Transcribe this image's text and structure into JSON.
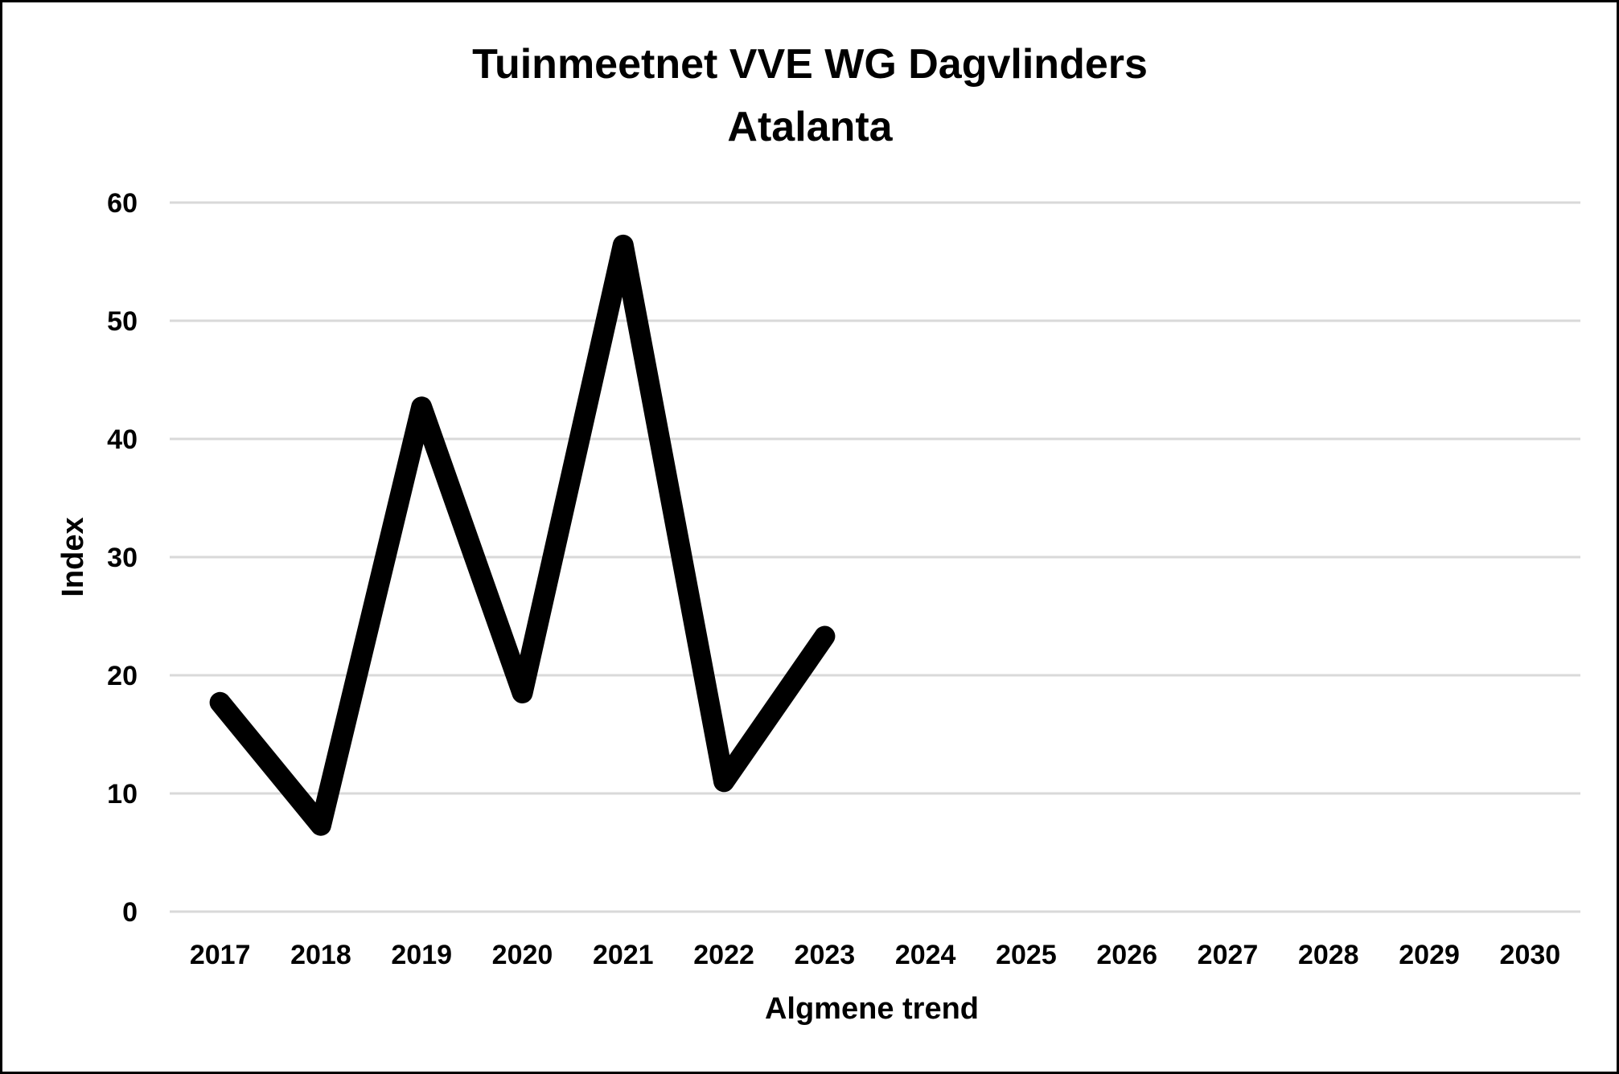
{
  "chart_data": {
    "type": "line",
    "title": "Tuinmeetnet VVE WG Dagvlinders",
    "subtitle": "Atalanta",
    "xlabel": "Algmene trend",
    "ylabel": "Index",
    "categories": [
      "2017",
      "2018",
      "2019",
      "2020",
      "2021",
      "2022",
      "2023",
      "2024",
      "2025",
      "2026",
      "2027",
      "2028",
      "2029",
      "2030"
    ],
    "ylim": [
      0,
      60
    ],
    "yticks": [
      "0",
      "10",
      "20",
      "30",
      "40",
      "50",
      "60"
    ],
    "grid": true,
    "legend": "none",
    "series": [
      {
        "values": [
          17.7,
          7.3,
          42.7,
          18.5,
          56.4,
          11.0,
          23.3,
          null,
          null,
          null,
          null,
          null,
          null,
          null
        ],
        "color": "#000000"
      }
    ]
  }
}
